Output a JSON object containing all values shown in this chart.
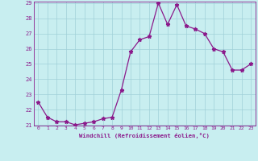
{
  "x": [
    0,
    1,
    2,
    3,
    4,
    5,
    6,
    7,
    8,
    9,
    10,
    11,
    12,
    13,
    14,
    15,
    16,
    17,
    18,
    19,
    20,
    21,
    22,
    23
  ],
  "y": [
    22.5,
    21.5,
    21.2,
    21.2,
    21.0,
    21.1,
    21.2,
    21.4,
    21.5,
    23.3,
    25.8,
    26.6,
    26.8,
    29.0,
    27.6,
    28.9,
    27.5,
    27.3,
    27.0,
    26.0,
    25.8,
    24.6,
    24.6,
    25.0
  ],
  "line_color": "#8b1a8b",
  "marker": "*",
  "marker_size": 3.5,
  "bg_color": "#c8eef0",
  "grid_color": "#a0d0d8",
  "xlabel": "Windchill (Refroidissement éolien,°C)",
  "xlabel_color": "#8b1a8b",
  "tick_color": "#8b1a8b",
  "ylim": [
    21,
    29
  ],
  "yticks": [
    21,
    22,
    23,
    24,
    25,
    26,
    27,
    28,
    29
  ],
  "xlim": [
    -0.5,
    23.5
  ],
  "xticks": [
    0,
    1,
    2,
    3,
    4,
    5,
    6,
    7,
    8,
    9,
    10,
    11,
    12,
    13,
    14,
    15,
    16,
    17,
    18,
    19,
    20,
    21,
    22,
    23
  ]
}
